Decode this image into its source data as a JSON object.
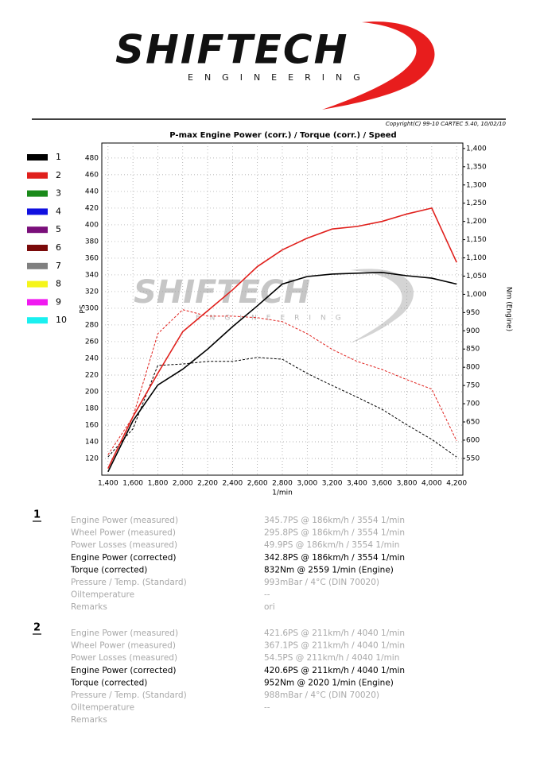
{
  "header": {
    "brand": "SHIFTECH",
    "tagline": "ENGINEERING",
    "copyright": "Copyright(C) 99-10 CARTEC 5.40, 10/02/10"
  },
  "chart_data": {
    "type": "line",
    "title": "P-max Engine Power (corr.) / Torque (corr.) / Speed",
    "watermark": "SHIFTECH",
    "watermark_tagline": "ENGINEERING",
    "x_label": "1/min",
    "y_label": "PS",
    "y2_label": "Nm (Engine)",
    "x": [
      1400,
      1600,
      1800,
      2000,
      2200,
      2400,
      2600,
      2800,
      3000,
      3200,
      3400,
      3600,
      3800,
      4000,
      4200
    ],
    "xlim": [
      1350,
      4250
    ],
    "xticks": [
      {
        "value": 1400,
        "label": "1,400"
      },
      {
        "value": 1600,
        "label": "1,600"
      },
      {
        "value": 1800,
        "label": "1,800"
      },
      {
        "value": 2000,
        "label": "2,000"
      },
      {
        "value": 2200,
        "label": "2,200"
      },
      {
        "value": 2400,
        "label": "2,400"
      },
      {
        "value": 2600,
        "label": "2,600"
      },
      {
        "value": 2800,
        "label": "2,800"
      },
      {
        "value": 3000,
        "label": "3,000"
      },
      {
        "value": 3200,
        "label": "3,200"
      },
      {
        "value": 3400,
        "label": "3,400"
      },
      {
        "value": 3600,
        "label": "3,600"
      },
      {
        "value": 3800,
        "label": "3,800"
      },
      {
        "value": 4000,
        "label": "4,000"
      },
      {
        "value": 4200,
        "label": "4,200"
      }
    ],
    "ylim": [
      100,
      498
    ],
    "yticks": [
      120,
      140,
      160,
      180,
      200,
      220,
      240,
      260,
      280,
      300,
      320,
      340,
      360,
      380,
      400,
      420,
      440,
      460,
      480
    ],
    "y2lim": [
      504,
      1415
    ],
    "y2ticks": [
      550,
      600,
      650,
      700,
      750,
      800,
      850,
      900,
      950,
      {
        "value": 1000,
        "label": "1,000"
      },
      {
        "value": 1050,
        "label": "1,050"
      },
      {
        "value": 1100,
        "label": "1,100"
      },
      {
        "value": 1150,
        "label": "1,150"
      },
      {
        "value": 1200,
        "label": "1,200"
      },
      {
        "value": 1250,
        "label": "1,250"
      },
      {
        "value": 1300,
        "label": "1,300"
      },
      {
        "value": 1350,
        "label": "1,350"
      },
      {
        "value": 1400,
        "label": "1,400"
      }
    ],
    "grid": true,
    "legend": [
      {
        "label": "1",
        "color": "#000000"
      },
      {
        "label": "2",
        "color": "#e0201c"
      },
      {
        "label": "3",
        "color": "#1a8a1a"
      },
      {
        "label": "4",
        "color": "#1010e0"
      },
      {
        "label": "5",
        "color": "#7a0f7a"
      },
      {
        "label": "6",
        "color": "#7a0a0a"
      },
      {
        "label": "7",
        "color": "#808080"
      },
      {
        "label": "8",
        "color": "#f5f51a"
      },
      {
        "label": "9",
        "color": "#f01af0"
      },
      {
        "label": "10",
        "color": "#1af0f0"
      }
    ],
    "series": [
      {
        "color": "#e0201c",
        "dashed": true,
        "axis": "y2",
        "values": [
          560,
          663,
          892,
          958,
          940,
          940,
          936,
          925,
          892,
          849,
          816,
          794,
          766,
          740,
          598
        ]
      },
      {
        "color": "#000000",
        "dashed": true,
        "axis": "y2",
        "values": [
          554,
          631,
          805,
          809,
          816,
          816,
          827,
          822,
          783,
          750,
          718,
          685,
          642,
          602,
          554
        ]
      },
      {
        "color": "#e0201c",
        "dashed": false,
        "values": [
          108,
          170,
          222,
          272,
          297,
          322,
          350,
          370,
          384,
          395,
          398,
          404,
          413,
          420,
          355
        ]
      },
      {
        "color": "#000000",
        "dashed": false,
        "values": [
          104,
          165,
          208,
          227,
          251,
          278,
          303,
          329,
          338,
          341,
          342,
          343,
          339,
          336,
          329
        ]
      }
    ]
  },
  "results": [
    {
      "run": "1",
      "rows": [
        {
          "label": "Engine Power (measured)",
          "value": "345.7PS @ 186km/h / 3554 1/min"
        },
        {
          "label": "Wheel Power (measured)",
          "value": "295.8PS @ 186km/h / 3554 1/min"
        },
        {
          "label": "Power Losses (measured)",
          "value": "49.9PS @ 186km/h / 3554 1/min"
        },
        {
          "label": "Engine Power (corrected)",
          "value": "342.8PS @ 186km/h / 3554 1/min"
        },
        {
          "label": "Torque (corrected)",
          "value": "832Nm @ 2559 1/min (Engine)"
        },
        {
          "label": "Pressure / Temp. (Standard)",
          "value": "993mBar / 4°C   (DIN 70020)"
        },
        {
          "label": "Oiltemperature",
          "value": "--"
        },
        {
          "label": "Remarks",
          "value": "ori"
        }
      ]
    },
    {
      "run": "2",
      "rows": [
        {
          "label": "Engine Power (measured)",
          "value": "421.6PS @ 211km/h / 4040 1/min"
        },
        {
          "label": "Wheel Power (measured)",
          "value": "367.1PS @ 211km/h / 4040 1/min"
        },
        {
          "label": "Power Losses (measured)",
          "value": "54.5PS @ 211km/h / 4040 1/min"
        },
        {
          "label": "Engine Power (corrected)",
          "value": "420.6PS @ 211km/h / 4040 1/min"
        },
        {
          "label": "Torque (corrected)",
          "value": "952Nm @ 2020 1/min (Engine)"
        },
        {
          "label": "Pressure / Temp. (Standard)",
          "value": "988mBar / 4°C   (DIN 70020)"
        },
        {
          "label": "Oiltemperature",
          "value": "--"
        },
        {
          "label": "Remarks"
        }
      ]
    }
  ]
}
